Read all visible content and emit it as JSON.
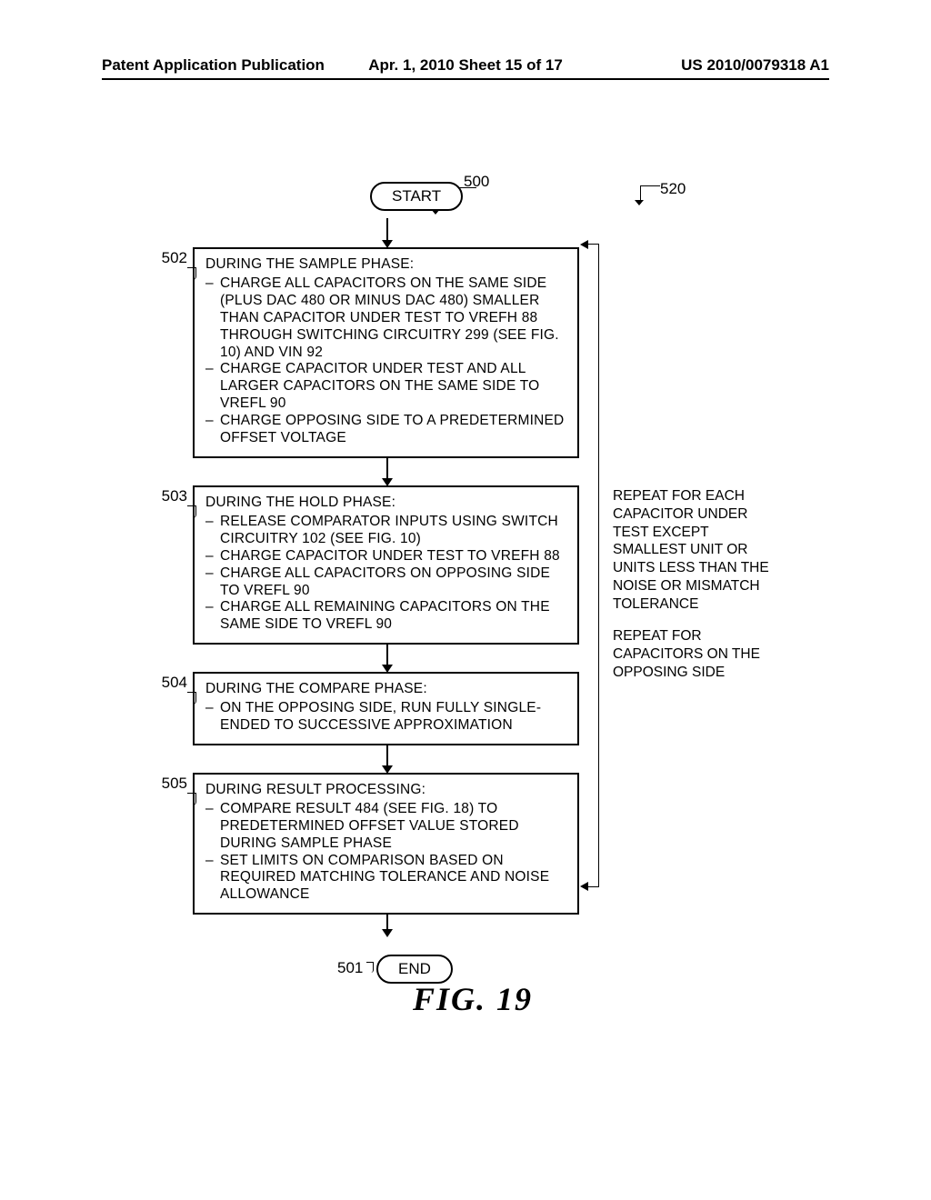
{
  "header": {
    "left": "Patent Application Publication",
    "mid": "Apr. 1, 2010  Sheet 15 of 17",
    "right": "US 2010/0079318 A1"
  },
  "ref520": "520",
  "start": {
    "label": "START",
    "num": "500"
  },
  "end": {
    "label": "END",
    "num": "501"
  },
  "steps": [
    {
      "num": "502",
      "head": "DURING THE SAMPLE PHASE:",
      "items": [
        "CHARGE ALL CAPACITORS ON THE SAME SIDE (PLUS DAC 480 OR MINUS DAC 480) SMALLER THAN CAPACITOR UNDER TEST TO VREFH 88 THROUGH SWITCHING CIRCUITRY 299 (SEE FIG. 10) AND VIN 92",
        "CHARGE CAPACITOR UNDER TEST AND ALL LARGER CAPACITORS ON THE SAME SIDE TO VREFL 90",
        "CHARGE OPPOSING SIDE TO A PREDETERMINED OFFSET VOLTAGE"
      ]
    },
    {
      "num": "503",
      "head": "DURING THE HOLD PHASE:",
      "items": [
        "RELEASE COMPARATOR INPUTS USING SWITCH CIRCUITRY 102 (SEE FIG. 10)",
        "CHARGE CAPACITOR UNDER TEST TO VREFH 88",
        "CHARGE ALL CAPACITORS ON OPPOSING SIDE TO VREFL 90",
        "CHARGE ALL REMAINING CAPACITORS ON THE SAME SIDE TO VREFL 90"
      ]
    },
    {
      "num": "504",
      "head": "DURING THE COMPARE PHASE:",
      "items": [
        "ON THE OPPOSING SIDE, RUN FULLY SINGLE-ENDED TO SUCCESSIVE APPROXIMATION"
      ]
    },
    {
      "num": "505",
      "head": "DURING RESULT PROCESSING:",
      "items": [
        "COMPARE RESULT 484 (SEE FIG. 18) TO PREDETERMINED OFFSET VALUE STORED DURING SAMPLE PHASE",
        "SET LIMITS ON COMPARISON BASED ON REQUIRED MATCHING TOLERANCE AND NOISE ALLOWANCE"
      ]
    }
  ],
  "sideText1": "REPEAT FOR EACH CAPACITOR UNDER TEST EXCEPT SMALLEST UNIT OR UNITS LESS THAN THE NOISE OR MISMATCH TOLERANCE",
  "sideText2": "REPEAT FOR CAPACITORS ON THE OPPOSING SIDE",
  "figCaption": "FIG. 19"
}
